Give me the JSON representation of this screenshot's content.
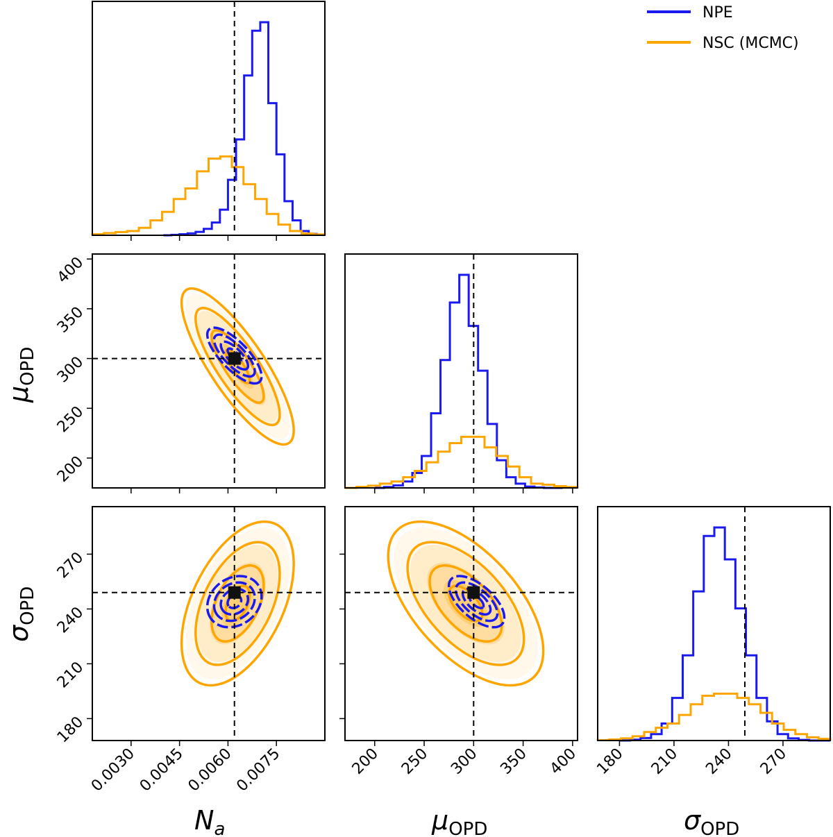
{
  "chart_data": {
    "type": "corner",
    "parameters": [
      {
        "key": "Na",
        "label_main": "N",
        "label_sub": "a",
        "truth": 0.0062,
        "range": [
          0.0018,
          0.009
        ],
        "ticks": [
          0.003,
          0.0045,
          0.006,
          0.0075
        ],
        "tick_labels": [
          "0.0030",
          "0.0045",
          "0.0060",
          "0.0075"
        ]
      },
      {
        "key": "mu",
        "label_main": "μ",
        "label_sub": "OPD",
        "truth": 300,
        "range": [
          170,
          405
        ],
        "ticks": [
          200,
          250,
          300,
          350,
          400
        ],
        "tick_labels": [
          "200",
          "250",
          "300",
          "350",
          "400"
        ]
      },
      {
        "key": "sigma",
        "label_main": "σ",
        "label_sub": "OPD",
        "truth": 249,
        "range": [
          168,
          296
        ],
        "ticks": [
          180,
          210,
          240,
          270
        ],
        "tick_labels": [
          "180",
          "210",
          "240",
          "270"
        ]
      }
    ],
    "series": [
      {
        "name": "NPE",
        "color": "#1a1aef",
        "means": [
          0.0062,
          303,
          244
        ],
        "sds": [
          0.00042,
          14,
          7
        ],
        "corr": {
          "0-1": -0.75,
          "0-2": 0.2,
          "1-2": -0.62
        },
        "contour_dashed": true,
        "hist": [
          {
            "edges": [
              0.004,
              0.009
            ],
            "heights": [
              0,
              0.002,
              0.005,
              0.009,
              0.016,
              0.03,
              0.06,
              0.12,
              0.26,
              0.45,
              0.75,
              0.96,
              1.0,
              0.62,
              0.38,
              0.16,
              0.07,
              0.02,
              0.006,
              0.002
            ]
          },
          {
            "edges": [
              200,
              390
            ],
            "heights": [
              0,
              0.004,
              0.012,
              0.03,
              0.07,
              0.15,
              0.35,
              0.6,
              0.87,
              1.0,
              0.76,
              0.55,
              0.3,
              0.13,
              0.05,
              0.02,
              0.006,
              0.002,
              0,
              0
            ]
          },
          {
            "edges": [
              180,
              296
            ],
            "heights": [
              0,
              0.004,
              0.012,
              0.03,
              0.08,
              0.2,
              0.4,
              0.7,
              0.96,
              1.0,
              0.85,
              0.62,
              0.4,
              0.2,
              0.09,
              0.03,
              0.01,
              0.003,
              0,
              0
            ]
          }
        ]
      },
      {
        "name": "NSC (MCMC)",
        "color": "#ffa500",
        "means": [
          0.0063,
          292,
          243
        ],
        "sds": [
          0.00062,
          28,
          16
        ],
        "corr": {
          "0-1": -0.82,
          "0-2": 0.48,
          "1-2": -0.58
        },
        "contour_dashed": false,
        "hist": [
          {
            "edges": [
              0.0018,
              0.009
            ],
            "heights": [
              0.005,
              0.01,
              0.015,
              0.02,
              0.035,
              0.07,
              0.11,
              0.17,
              0.22,
              0.3,
              0.36,
              0.37,
              0.32,
              0.24,
              0.17,
              0.1,
              0.05,
              0.02,
              0.008,
              0.004
            ]
          },
          {
            "edges": [
              170,
              405
            ],
            "heights": [
              0,
              0.005,
              0.01,
              0.02,
              0.03,
              0.05,
              0.08,
              0.12,
              0.17,
              0.21,
              0.24,
              0.24,
              0.19,
              0.15,
              0.1,
              0.05,
              0.02,
              0.015,
              0.008,
              0.004
            ]
          },
          {
            "edges": [
              168,
              296
            ],
            "heights": [
              0.002,
              0.005,
              0.01,
              0.02,
              0.04,
              0.06,
              0.08,
              0.12,
              0.17,
              0.21,
              0.22,
              0.22,
              0.2,
              0.17,
              0.13,
              0.08,
              0.05,
              0.03,
              0.015,
              0.008
            ]
          }
        ]
      }
    ],
    "legend": {
      "position": "top-right",
      "entries": [
        "NPE",
        "NSC (MCMC)"
      ]
    },
    "truth_marker": "black-square",
    "grid": false
  }
}
